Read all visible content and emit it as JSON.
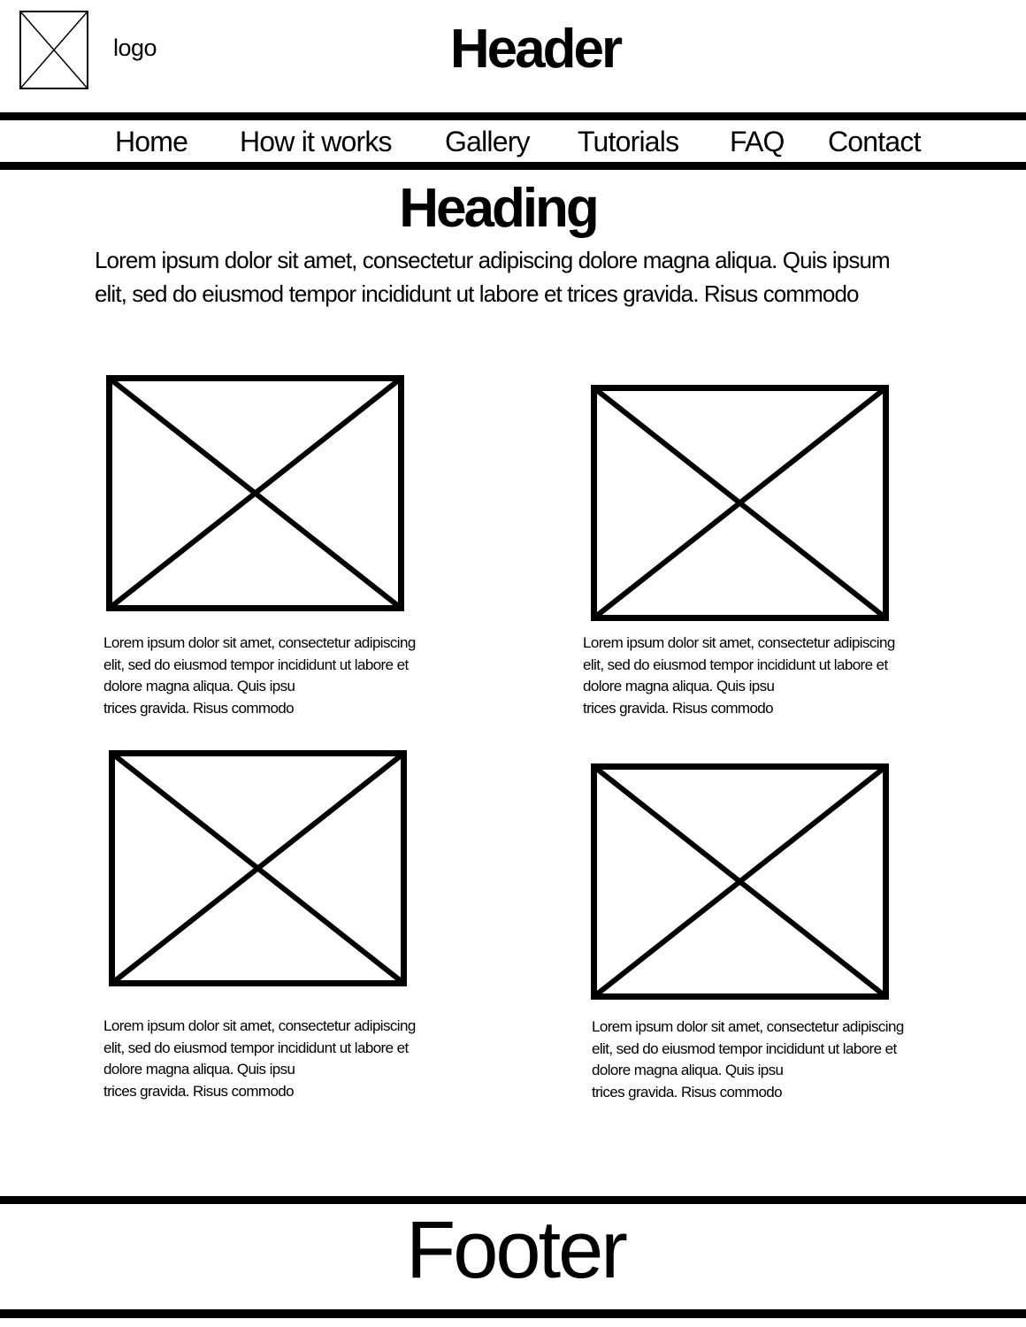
{
  "header": {
    "logo_label": "logo",
    "title": "Header"
  },
  "nav": {
    "items": [
      {
        "label": "Home"
      },
      {
        "label": "How it works"
      },
      {
        "label": "Gallery"
      },
      {
        "label": "Tutorials"
      },
      {
        "label": "FAQ"
      },
      {
        "label": "Contact"
      }
    ]
  },
  "main": {
    "heading": "Heading",
    "intro_lines": [
      "Lorem ipsum dolor sit amet, consectetur adipiscing dolore magna aliqua. Quis ipsum",
      "elit, sed do eiusmod tempor incididunt ut labore et  trices gravida. Risus commodo"
    ],
    "cards": [
      {
        "lines": [
          "Lorem ipsum dolor sit amet, consectetur adipiscing",
          "elit, sed do eiusmod tempor incididunt ut labore et",
          "dolore magna aliqua. Quis ipsu",
          "trices gravida. Risus commodo"
        ]
      },
      {
        "lines": [
          "Lorem ipsum dolor sit amet, consectetur adipiscing",
          "elit, sed do eiusmod tempor incididunt ut labore et",
          "dolore magna aliqua. Quis ipsu",
          "trices gravida. Risus commodo"
        ]
      },
      {
        "lines": [
          "Lorem ipsum dolor sit amet, consectetur adipiscing",
          "elit, sed do eiusmod tempor incididunt ut labore et",
          "dolore magna aliqua. Quis ipsu",
          "trices gravida. Risus commodo"
        ]
      },
      {
        "lines": [
          "Lorem ipsum dolor sit amet, consectetur adipiscing",
          "elit, sed do eiusmod tempor incididunt ut labore et",
          "dolore magna aliqua. Quis ipsu",
          "trices gravida. Risus commodo"
        ]
      }
    ]
  },
  "footer": {
    "title": "Footer"
  }
}
